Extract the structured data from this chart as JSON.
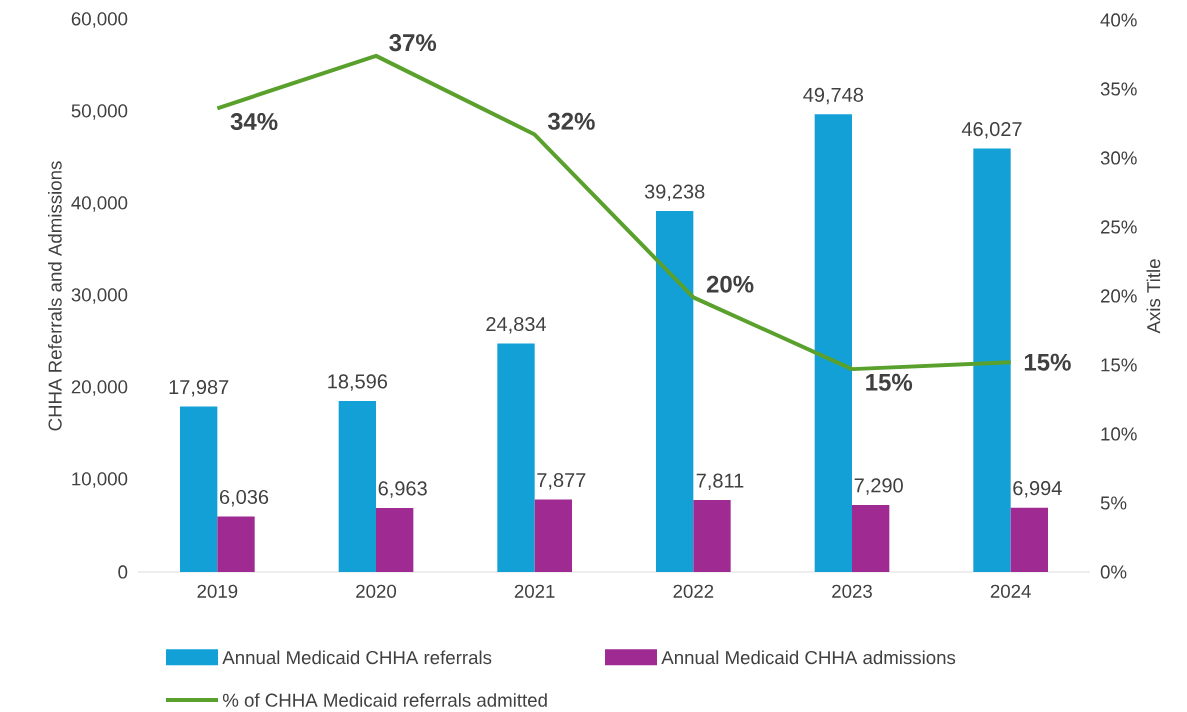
{
  "chart_data": {
    "type": "bar",
    "categories": [
      "2019",
      "2020",
      "2021",
      "2022",
      "2023",
      "2024"
    ],
    "ylabel": "CHHA Referrals and Admissions",
    "y2label": "Axis Title",
    "ylim": [
      0,
      60000
    ],
    "yticks": [
      {
        "value": 0,
        "label": "0"
      },
      {
        "value": 10000,
        "label": "10,000"
      },
      {
        "value": 20000,
        "label": "20,000"
      },
      {
        "value": 30000,
        "label": "30,000"
      },
      {
        "value": 40000,
        "label": "40,000"
      },
      {
        "value": 50000,
        "label": "50,000"
      },
      {
        "value": 60000,
        "label": "60,000"
      }
    ],
    "y2lim": [
      0,
      40
    ],
    "y2ticks": [
      {
        "value": 0,
        "label": "0%"
      },
      {
        "value": 5,
        "label": "5%"
      },
      {
        "value": 10,
        "label": "10%"
      },
      {
        "value": 15,
        "label": "15%"
      },
      {
        "value": 20,
        "label": "20%"
      },
      {
        "value": 25,
        "label": "25%"
      },
      {
        "value": 30,
        "label": "30%"
      },
      {
        "value": 35,
        "label": "35%"
      },
      {
        "value": 40,
        "label": "40%"
      }
    ],
    "legend": "bottom",
    "series": [
      {
        "name": "Annual Medicaid CHHA referrals",
        "color": "#12a0d7",
        "values": [
          17987,
          18596,
          24834,
          39238,
          49748,
          46027
        ],
        "value_labels": [
          "17,987",
          "18,596",
          "24,834",
          "39,238",
          "49,748",
          "46,027"
        ]
      },
      {
        "name": "Annual Medicaid CHHA admissions",
        "color": "#9e2a92",
        "values": [
          6036,
          6963,
          7877,
          7811,
          7290,
          6994
        ],
        "value_labels": [
          "6,036",
          "6,963",
          "7,877",
          "7,811",
          "7,290",
          "6,994"
        ]
      },
      {
        "name": "% of CHHA Medicaid referrals admitted",
        "type": "line",
        "axis": "y2",
        "color": "#5aa02c",
        "values": [
          33.6,
          37.4,
          31.7,
          19.9,
          14.7,
          15.2
        ],
        "value_labels": [
          "34%",
          "37%",
          "32%",
          "20%",
          "15%",
          "15%"
        ]
      }
    ]
  }
}
